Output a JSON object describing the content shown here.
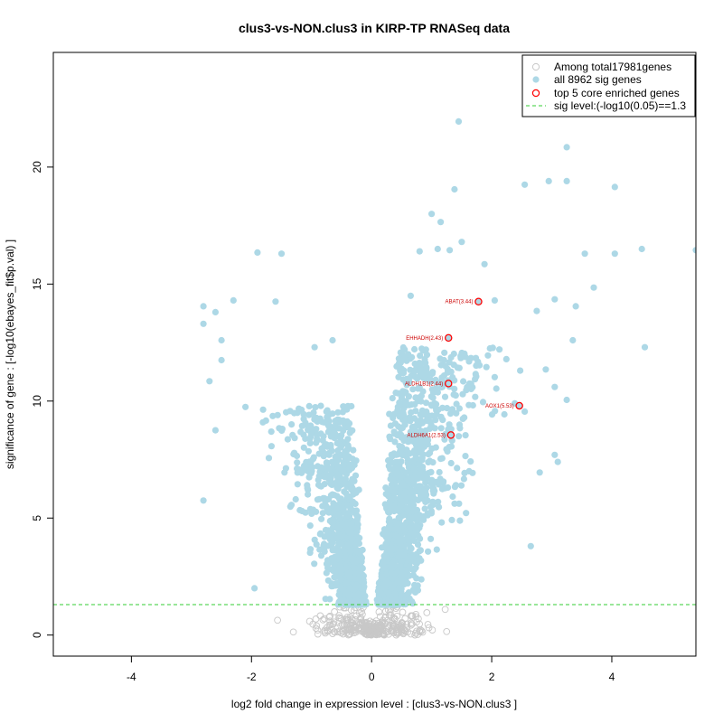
{
  "chart_data": {
    "type": "scatter",
    "title": "clus3-vs-NON.clus3 in KIRP-TP RNASeq data",
    "xlabel": "log2 fold change in expression level : [clus3-vs-NON.clus3 ]",
    "ylabel": "significance of gene : [-log10(ebayes_fit$p.val) ]",
    "xlim": [
      -5.3,
      5.4
    ],
    "ylim": [
      -0.9,
      24.9
    ],
    "x_ticks": [
      -4,
      -2,
      0,
      2,
      4
    ],
    "y_ticks": [
      0,
      5,
      10,
      15,
      20
    ],
    "legend": {
      "position": "top-right",
      "entries": [
        {
          "label": "Among total17981genes",
          "marker": "open-circle",
          "color": "#c8c8c8"
        },
        {
          "label": "all 8962 sig genes",
          "marker": "filled-circle",
          "color": "#add8e6"
        },
        {
          "label": "top 5 core enriched genes",
          "marker": "open-circle",
          "color": "#ff0000"
        },
        {
          "label": "sig level:(-log10(0.05)==1.3",
          "marker": "dashed-line",
          "color": "#33cc33"
        }
      ]
    },
    "sig_level": 1.3,
    "colors": {
      "nonsig": "#c8c8c8",
      "sig": "#add8e6",
      "top": "#ff0000",
      "threshold": "#33cc33"
    },
    "top_genes": [
      {
        "label": "ABAT(3.44)",
        "x": 1.78,
        "y": 14.25
      },
      {
        "label": "EHHADH(2.43)",
        "x": 1.28,
        "y": 12.7
      },
      {
        "label": "ALDH1B1(2.44)",
        "x": 1.28,
        "y": 10.75
      },
      {
        "label": "AOX1(5.53)",
        "x": 2.46,
        "y": 9.8
      },
      {
        "label": "ALDH6A1(2.53)",
        "x": 1.32,
        "y": 8.55
      }
    ],
    "highlight_sig_points": [
      [
        1.45,
        21.95
      ],
      [
        3.25,
        20.85
      ],
      [
        2.95,
        19.4
      ],
      [
        3.25,
        19.4
      ],
      [
        2.55,
        19.25
      ],
      [
        1.38,
        19.05
      ],
      [
        4.05,
        19.15
      ],
      [
        1.5,
        16.8
      ],
      [
        1.1,
        16.5
      ],
      [
        1.3,
        16.45
      ],
      [
        0.8,
        16.4
      ],
      [
        1.88,
        15.85
      ],
      [
        4.5,
        16.5
      ],
      [
        4.05,
        16.3
      ],
      [
        5.4,
        16.45
      ],
      [
        3.55,
        16.3
      ],
      [
        1.0,
        18.0
      ],
      [
        1.15,
        17.65
      ],
      [
        -1.9,
        16.35
      ],
      [
        -1.5,
        16.3
      ],
      [
        -2.8,
        14.05
      ],
      [
        -2.6,
        13.8
      ],
      [
        -2.3,
        14.3
      ],
      [
        -1.6,
        14.25
      ],
      [
        -2.8,
        13.3
      ],
      [
        -2.5,
        12.6
      ],
      [
        3.7,
        14.85
      ],
      [
        3.4,
        14.05
      ],
      [
        3.05,
        14.35
      ],
      [
        2.75,
        13.85
      ],
      [
        2.05,
        14.3
      ],
      [
        0.65,
        14.5
      ],
      [
        -2.5,
        11.75
      ],
      [
        -2.7,
        10.85
      ],
      [
        -2.1,
        9.75
      ],
      [
        -2.6,
        8.75
      ],
      [
        -2.8,
        5.75
      ],
      [
        -1.95,
        2.0
      ],
      [
        4.55,
        12.3
      ],
      [
        3.35,
        12.6
      ],
      [
        3.05,
        10.6
      ],
      [
        3.25,
        10.05
      ],
      [
        2.9,
        11.35
      ],
      [
        3.05,
        7.7
      ],
      [
        2.65,
        3.8
      ],
      [
        2.8,
        6.95
      ],
      [
        3.1,
        7.4
      ],
      [
        2.55,
        9.55
      ],
      [
        -0.95,
        12.3
      ],
      [
        -0.65,
        12.6
      ]
    ]
  }
}
